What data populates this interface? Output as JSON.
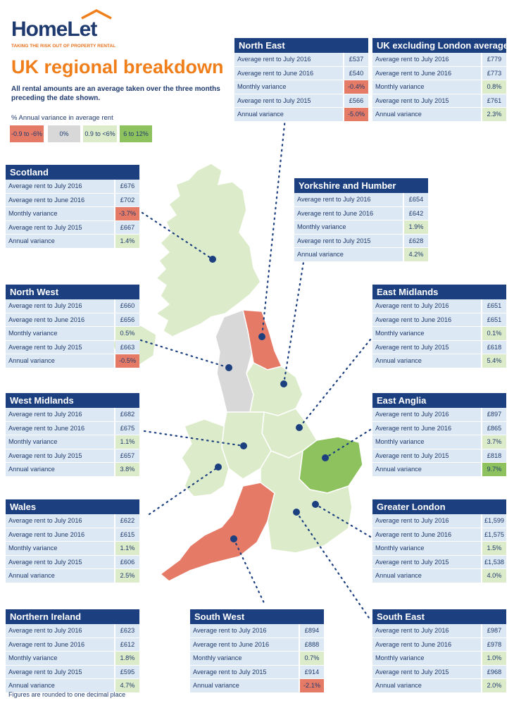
{
  "brand": {
    "name": "HomeLet",
    "tagline": "TAKING THE RISK OUT OF PROPERTY RENTAL"
  },
  "title": "UK regional breakdown",
  "subtitle": "All rental amounts are an average taken over the three months preceding the date shown.",
  "legend": {
    "title": "% Annual variance in average rent",
    "items": [
      "-0.9 to -6%",
      "0%",
      "0.9 to <6%",
      "6 to 12%"
    ]
  },
  "colors": {
    "navy": "#1c3f7f",
    "orange": "#ef7e1b",
    "negative": "#e57a66",
    "zero": "#d8d8d8",
    "low": "#dcebc9",
    "high": "#8dc25e"
  },
  "row_labels": [
    "Average rent to July 2016",
    "Average rent to June 2016",
    "Monthly variance",
    "Average rent to July 2015",
    "Annual variance"
  ],
  "regions": {
    "north_east": {
      "name": "North East",
      "values": [
        "£537",
        "£540",
        "-0.4%",
        "£566",
        "-5.0%"
      ]
    },
    "uk_ex_london": {
      "name": "UK excluding London average",
      "values": [
        "£779",
        "£773",
        "0.8%",
        "£761",
        "2.3%"
      ]
    },
    "scotland": {
      "name": "Scotland",
      "values": [
        "£676",
        "£702",
        "-3.7%",
        "£667",
        "1.4%"
      ]
    },
    "yorkshire": {
      "name": "Yorkshire and Humber",
      "values": [
        "£654",
        "£642",
        "1.9%",
        "£628",
        "4.2%"
      ]
    },
    "north_west": {
      "name": "North West",
      "values": [
        "£660",
        "£656",
        "0.5%",
        "£663",
        "-0.5%"
      ]
    },
    "east_midlands": {
      "name": "East Midlands",
      "values": [
        "£651",
        "£651",
        "0.1%",
        "£618",
        "5.4%"
      ]
    },
    "west_midlands": {
      "name": "West Midlands",
      "values": [
        "£682",
        "£675",
        "1.1%",
        "£657",
        "3.8%"
      ]
    },
    "east_anglia": {
      "name": "East Anglia",
      "values": [
        "£897",
        "£865",
        "3.7%",
        "£818",
        "9.7%"
      ]
    },
    "wales": {
      "name": "Wales",
      "values": [
        "£622",
        "£615",
        "1.1%",
        "£606",
        "2.5%"
      ]
    },
    "greater_london": {
      "name": "Greater London",
      "values": [
        "£1,599",
        "£1,575",
        "1.5%",
        "£1,538",
        "4.0%"
      ]
    },
    "northern_ireland": {
      "name": "Northern Ireland",
      "values": [
        "£623",
        "£612",
        "1.8%",
        "£595",
        "4.7%"
      ]
    },
    "south_west": {
      "name": "South West",
      "values": [
        "£894",
        "£888",
        "0.7%",
        "£914",
        "-2.1%"
      ]
    },
    "south_east": {
      "name": "South East",
      "values": [
        "£987",
        "£978",
        "1.0%",
        "£968",
        "2.0%"
      ]
    }
  },
  "footnote": "Figures are rounded to one decimal place"
}
